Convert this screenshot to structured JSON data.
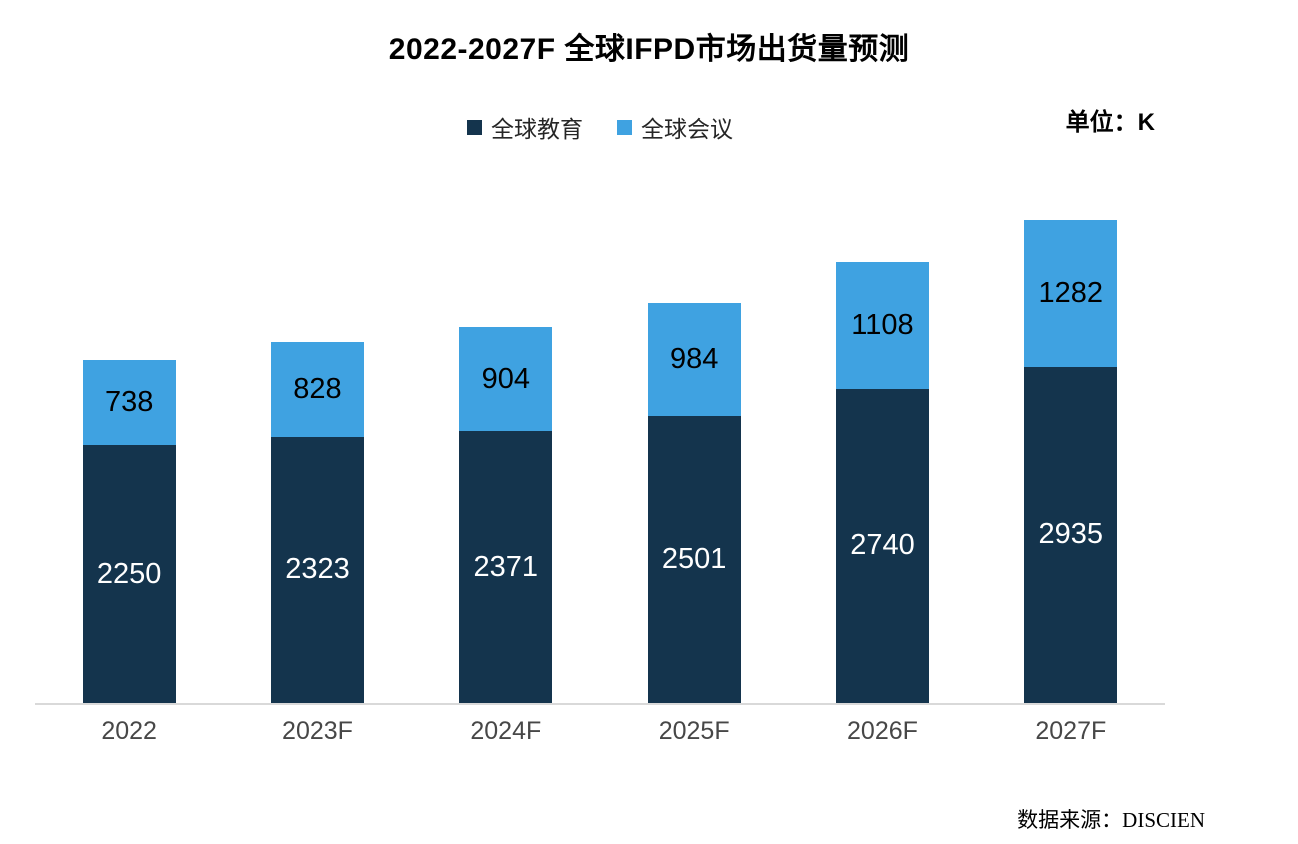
{
  "title": "2022-2027F 全球IFPD市场出货量预测",
  "unit_label": "单位：K",
  "source": "数据来源：DISCIEN",
  "colors": {
    "education": "#14344D",
    "meeting": "#3FA2E1",
    "axis_line": "#D9D9D9",
    "x_label": "#474747"
  },
  "legend": [
    {
      "label": "全球教育",
      "color": "#14344D"
    },
    {
      "label": "全球会议",
      "color": "#3FA2E1"
    }
  ],
  "chart_data": {
    "type": "bar",
    "stacked": true,
    "title": "2022-2027F 全球IFPD市场出货量预测",
    "unit": "K",
    "categories": [
      "2022",
      "2023F",
      "2024F",
      "2025F",
      "2026F",
      "2027F"
    ],
    "series": [
      {
        "name": "全球教育",
        "color": "#14344D",
        "label_color": "#FFFFFF",
        "values": [
          2250,
          2323,
          2371,
          2501,
          2740,
          2935
        ]
      },
      {
        "name": "全球会议",
        "color": "#3FA2E1",
        "label_color": "#000000",
        "values": [
          738,
          828,
          904,
          984,
          1108,
          1282
        ]
      }
    ],
    "totals": [
      2988,
      3151,
      3275,
      3485,
      3848,
      4217
    ],
    "xlabel": "",
    "ylabel": "",
    "ylim": [
      0,
      4500
    ],
    "grid": false,
    "legend_position": "top",
    "data_labels": true,
    "source": "数据来源：DISCIEN"
  }
}
